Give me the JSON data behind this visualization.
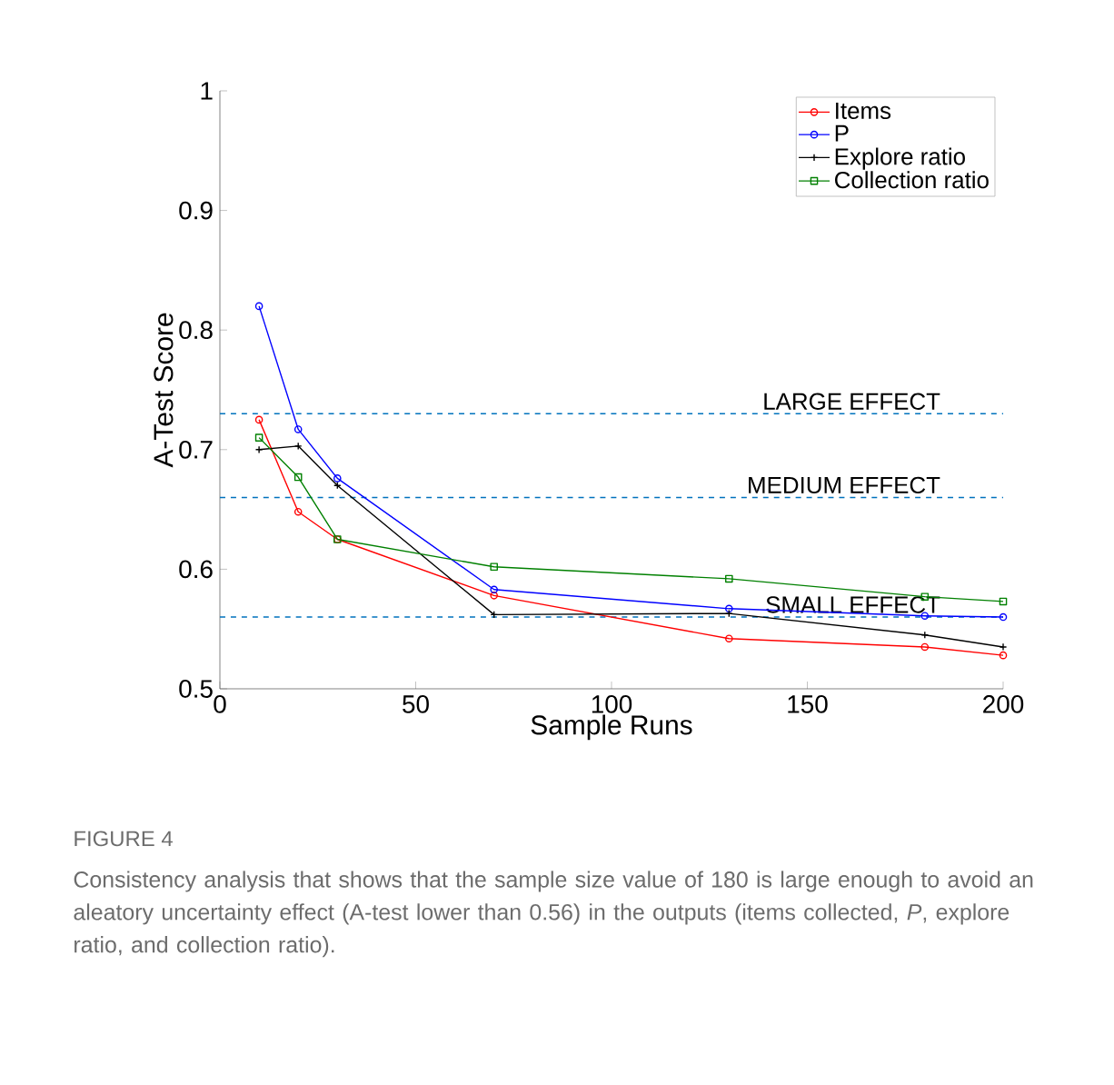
{
  "chart_data": {
    "type": "line",
    "xlabel": "Sample Runs",
    "ylabel": "A-Test Score",
    "x": [
      10,
      20,
      30,
      70,
      130,
      180,
      200
    ],
    "series": [
      {
        "name": "Items",
        "color": "#ff0000",
        "marker": "circle",
        "values": [
          0.725,
          0.648,
          0.625,
          0.578,
          0.542,
          0.535,
          0.528
        ]
      },
      {
        "name": "P",
        "color": "#0000ff",
        "marker": "circle",
        "values": [
          0.82,
          0.717,
          0.676,
          0.583,
          0.567,
          0.561,
          0.56
        ]
      },
      {
        "name": "Explore ratio",
        "color": "#000000",
        "marker": "cross",
        "values": [
          0.7,
          0.703,
          0.67,
          0.562,
          0.563,
          0.545,
          0.535
        ]
      },
      {
        "name": "Collection ratio",
        "color": "#008000",
        "marker": "square",
        "values": [
          0.71,
          0.677,
          0.625,
          0.602,
          0.592,
          0.577,
          0.573
        ]
      }
    ],
    "xlim": [
      0,
      200
    ],
    "xticks": [
      0,
      50,
      100,
      150,
      200
    ],
    "ylim": [
      0.5,
      1
    ],
    "yticks": [
      0.5,
      0.6,
      0.7,
      0.8,
      0.9,
      1
    ],
    "ref_lines": [
      {
        "axis": "y",
        "value": 0.73,
        "label": "LARGE EFFECT",
        "color": "#0072bd",
        "line_style": "dashed"
      },
      {
        "axis": "y",
        "value": 0.66,
        "label": "MEDIUM EFFECT",
        "color": "#0072bd",
        "line_style": "dashed"
      },
      {
        "axis": "y",
        "value": 0.56,
        "label": "SMALL EFFECT",
        "color": "#0072bd",
        "line_style": "dashed"
      }
    ],
    "legend": "top right",
    "line_style": "solid",
    "annotations": [
      "FIGURE 4",
      "Consistency analysis that shows that the sample size value of 180 is large enough to avoid an aleatory uncertainty effect (A-test lower than 0.56) in the outputs (items collected, *P*, explore ratio, and collection ratio)."
    ]
  }
}
